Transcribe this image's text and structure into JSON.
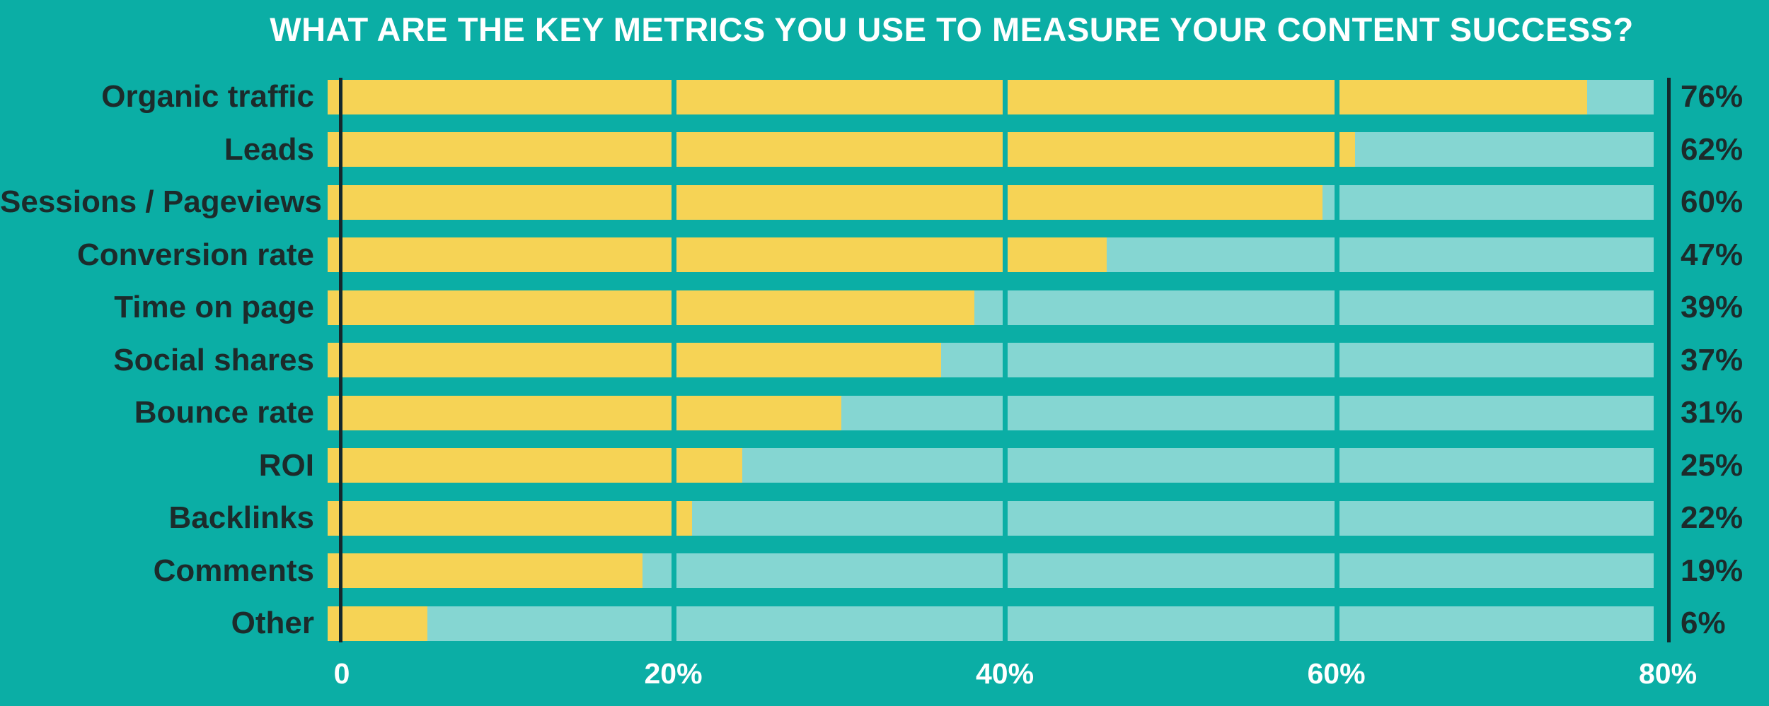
{
  "title": "WHAT ARE THE KEY METRICS YOU USE TO MEASURE YOUR CONTENT SUCCESS?",
  "colors": {
    "background": "#0BAEA5",
    "bar_fill": "#F6D355",
    "bar_track": "#85D6D2",
    "gridline": "#0BAEA5",
    "axis_line": "#13282C",
    "label_text": "#1C2B2B",
    "title_text": "#FFFFFF",
    "tick_text": "#FFFFFF"
  },
  "chart_data": {
    "type": "bar",
    "orientation": "horizontal",
    "title": "WHAT ARE THE KEY METRICS YOU USE TO MEASURE YOUR CONTENT SUCCESS?",
    "categories": [
      "Organic traffic",
      "Leads",
      "Sessions / Pageviews",
      "Conversion rate",
      "Time on page",
      "Social shares",
      "Bounce rate",
      "ROI",
      "Backlinks",
      "Comments",
      "Other"
    ],
    "values": [
      76,
      62,
      60,
      47,
      39,
      37,
      31,
      25,
      22,
      19,
      6
    ],
    "value_labels": [
      "76%",
      "62%",
      "60%",
      "47%",
      "39%",
      "37%",
      "31%",
      "25%",
      "22%",
      "19%",
      "6%"
    ],
    "xlabel": "",
    "ylabel": "",
    "xlim": [
      0,
      80
    ],
    "x_ticks": [
      "0",
      "20%",
      "40%",
      "60%",
      "80%"
    ],
    "x_tick_values": [
      0,
      20,
      40,
      60,
      80
    ],
    "grid": true,
    "legend": "none"
  }
}
